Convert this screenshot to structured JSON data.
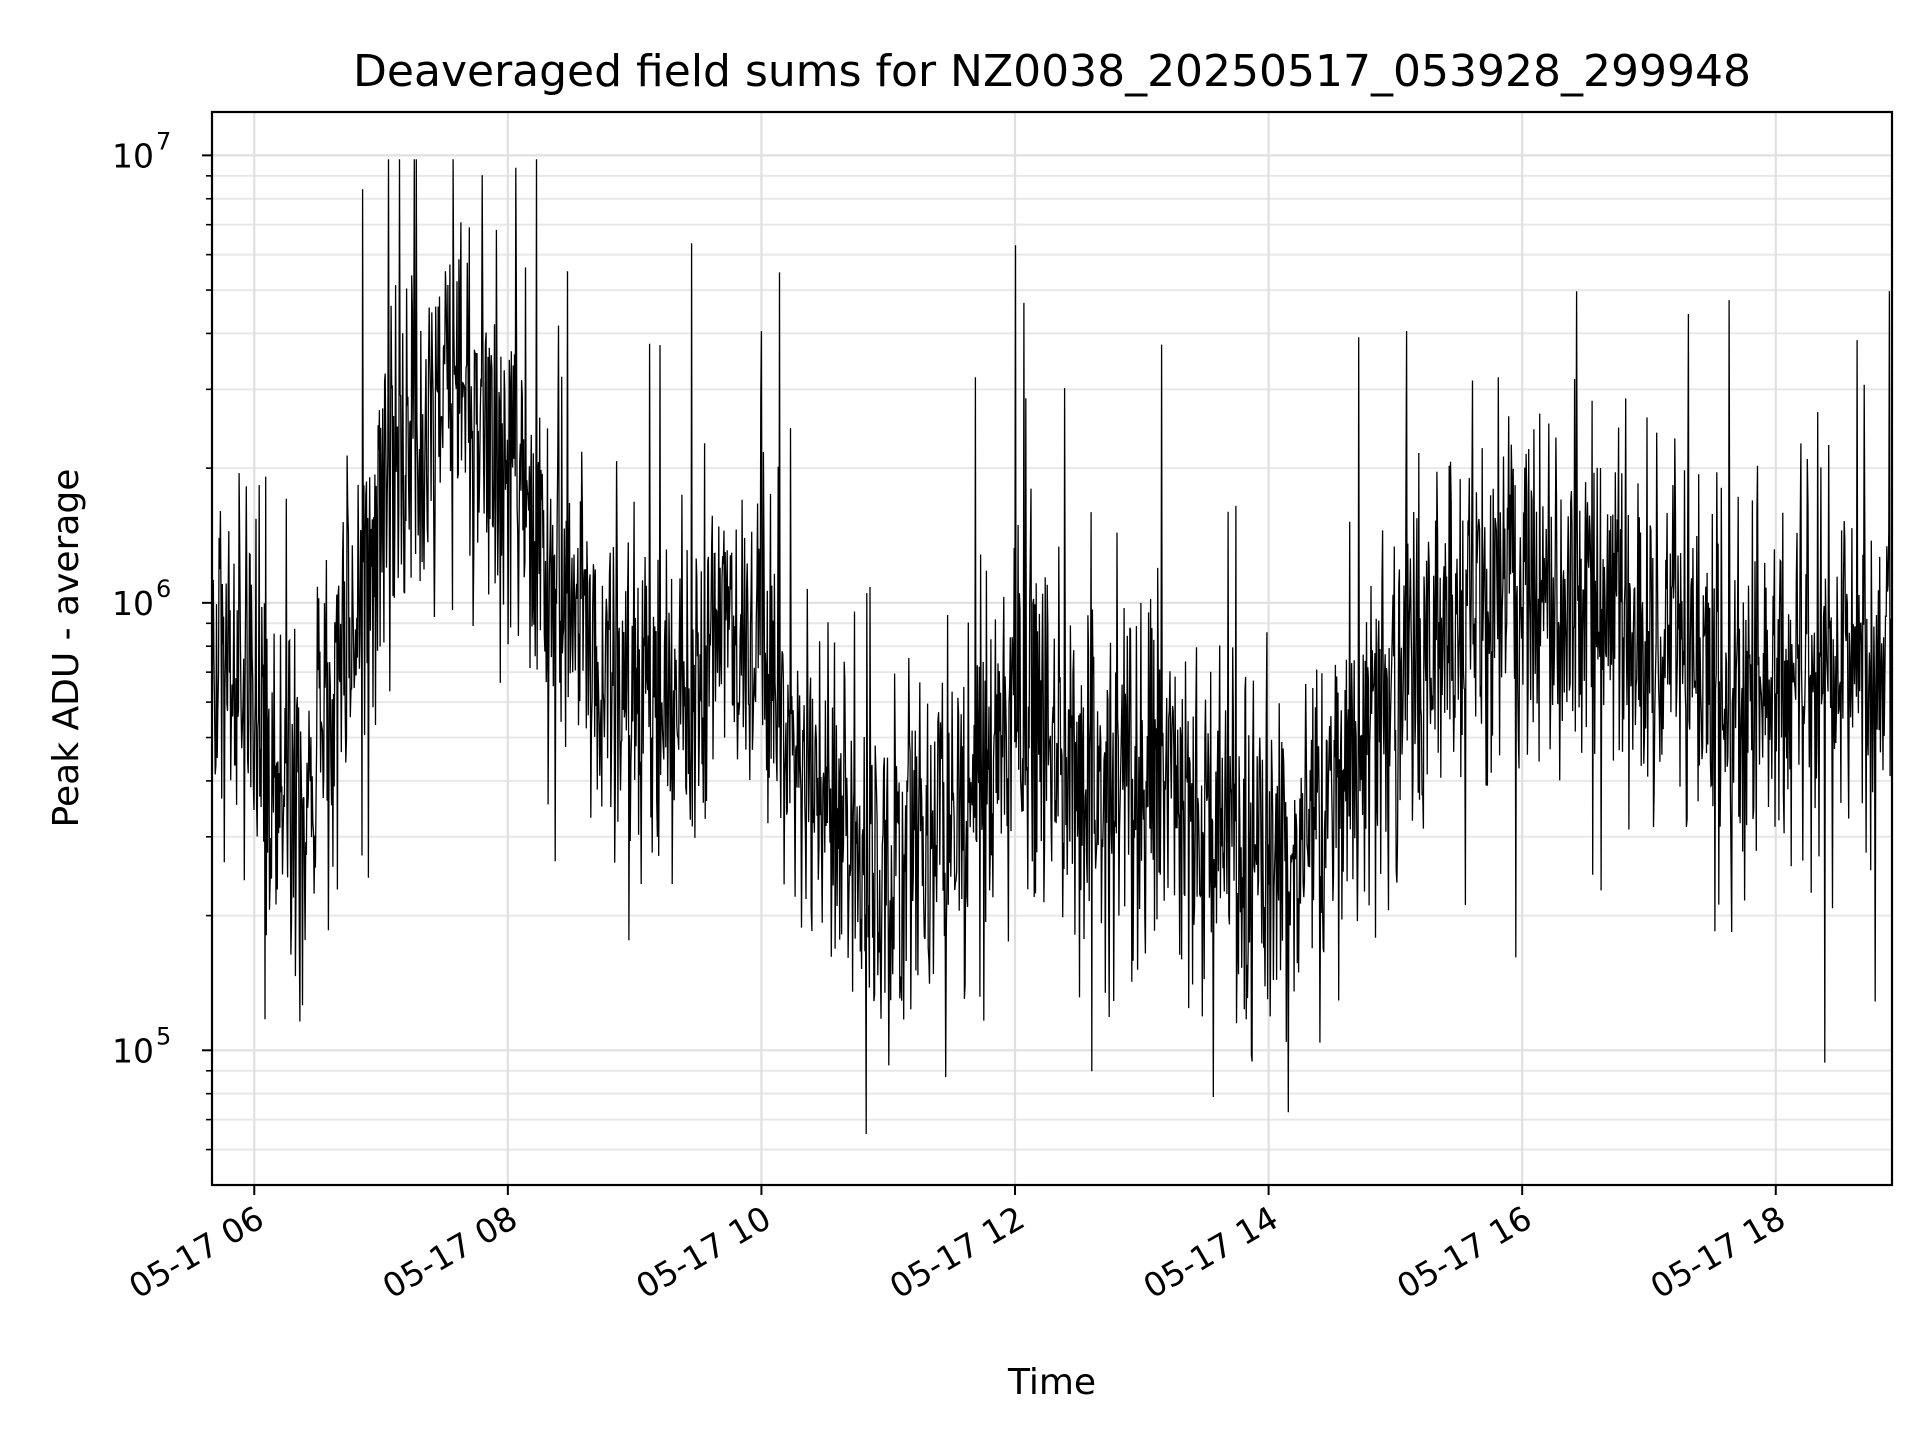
{
  "chart_data": {
    "type": "line",
    "title": "Deaveraged field sums for NZ0038_20250517_053928_299948",
    "xlabel": "Time",
    "ylabel": "Peak ADU - average",
    "x_range": [
      "2025-05-17T05:40",
      "2025-05-17T18:55"
    ],
    "y_scale": "log",
    "ylim": [
      50000,
      12500000
    ],
    "grid": true,
    "x_ticks": [
      "2025-05-17T06:00",
      "2025-05-17T08:00",
      "2025-05-17T10:00",
      "2025-05-17T12:00",
      "2025-05-17T14:00",
      "2025-05-17T16:00",
      "2025-05-17T18:00"
    ],
    "x_tick_labels": [
      "05-17 06",
      "05-17 08",
      "05-17 10",
      "05-17 12",
      "05-17 14",
      "05-17 16",
      "05-17 18"
    ],
    "y_ticks": [
      100000,
      1000000,
      10000000
    ],
    "y_tick_labels": [
      {
        "base": "10",
        "exp": "5"
      },
      {
        "base": "10",
        "exp": "6"
      },
      {
        "base": "10",
        "exp": "7"
      }
    ],
    "series": [
      {
        "color": "#000000",
        "x": [
          "2025-05-17T05:40",
          "2025-05-17T06:00",
          "2025-05-17T06:20",
          "2025-05-17T06:40",
          "2025-05-17T07:00",
          "2025-05-17T07:20",
          "2025-05-17T07:40",
          "2025-05-17T08:00",
          "2025-05-17T08:20",
          "2025-05-17T08:40",
          "2025-05-17T09:00",
          "2025-05-17T09:20",
          "2025-05-17T09:40",
          "2025-05-17T10:00",
          "2025-05-17T10:20",
          "2025-05-17T10:40",
          "2025-05-17T11:00",
          "2025-05-17T11:20",
          "2025-05-17T11:40",
          "2025-05-17T12:00",
          "2025-05-17T12:20",
          "2025-05-17T12:40",
          "2025-05-17T13:00",
          "2025-05-17T13:20",
          "2025-05-17T13:40",
          "2025-05-17T14:00",
          "2025-05-17T14:20",
          "2025-05-17T14:40",
          "2025-05-17T15:00",
          "2025-05-17T15:20",
          "2025-05-17T15:40",
          "2025-05-17T16:00",
          "2025-05-17T16:20",
          "2025-05-17T16:40",
          "2025-05-17T17:00",
          "2025-05-17T17:20",
          "2025-05-17T17:40",
          "2025-05-17T18:00",
          "2025-05-17T18:20",
          "2025-05-17T18:40",
          "2025-05-17T18:55"
        ],
        "y": [
          750000,
          650000,
          300000,
          700000,
          1500000,
          2500000,
          2800000,
          1900000,
          1100000,
          800000,
          600000,
          550000,
          900000,
          800000,
          400000,
          300000,
          260000,
          300000,
          320000,
          600000,
          550000,
          380000,
          420000,
          330000,
          300000,
          260000,
          280000,
          500000,
          650000,
          700000,
          950000,
          1200000,
          850000,
          900000,
          800000,
          750000,
          600000,
          700000,
          700000,
          650000,
          800000
        ]
      }
    ]
  }
}
